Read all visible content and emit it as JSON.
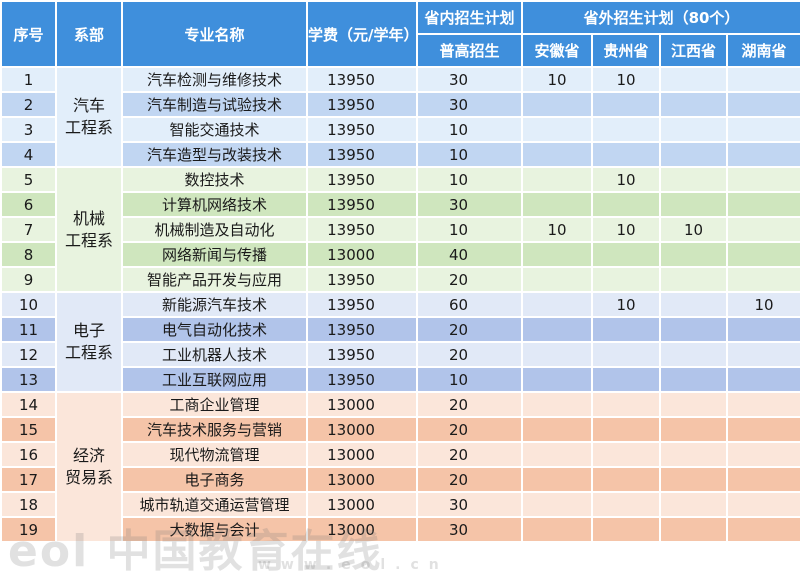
{
  "header": {
    "seq": "序号",
    "dept": "系部",
    "major": "专业名称",
    "tuition": "学费（元/学年）",
    "in_province_plan": "省内招生计划",
    "regular": "普高招生",
    "out_province_plan": "省外招生计划（80个）",
    "provinces": [
      "安徽省",
      "贵州省",
      "江西省",
      "湖南省"
    ]
  },
  "departments": [
    {
      "key": "auto",
      "name_line1": "汽车",
      "name_line2": "工程系",
      "rows": [
        {
          "seq": "1",
          "major": "汽车检测与维修技术",
          "tuition": "13950",
          "regular": "30",
          "p": [
            "10",
            "10",
            "",
            ""
          ]
        },
        {
          "seq": "2",
          "major": "汽车制造与试验技术",
          "tuition": "13950",
          "regular": "30",
          "p": [
            "",
            "",
            "",
            ""
          ]
        },
        {
          "seq": "3",
          "major": "智能交通技术",
          "tuition": "13950",
          "regular": "10",
          "p": [
            "",
            "",
            "",
            ""
          ]
        },
        {
          "seq": "4",
          "major": "汽车造型与改装技术",
          "tuition": "13950",
          "regular": "10",
          "p": [
            "",
            "",
            "",
            ""
          ]
        }
      ]
    },
    {
      "key": "mech",
      "name_line1": "机械",
      "name_line2": "工程系",
      "rows": [
        {
          "seq": "5",
          "major": "数控技术",
          "tuition": "13950",
          "regular": "10",
          "p": [
            "",
            "10",
            "",
            ""
          ]
        },
        {
          "seq": "6",
          "major": "计算机网络技术",
          "tuition": "13950",
          "regular": "30",
          "p": [
            "",
            "",
            "",
            ""
          ]
        },
        {
          "seq": "7",
          "major": "机械制造及自动化",
          "tuition": "13950",
          "regular": "10",
          "p": [
            "10",
            "10",
            "10",
            ""
          ]
        },
        {
          "seq": "8",
          "major": "网络新闻与传播",
          "tuition": "13000",
          "regular": "40",
          "p": [
            "",
            "",
            "",
            ""
          ]
        },
        {
          "seq": "9",
          "major": "智能产品开发与应用",
          "tuition": "13950",
          "regular": "20",
          "p": [
            "",
            "",
            "",
            ""
          ]
        }
      ]
    },
    {
      "key": "elec",
      "name_line1": "电子",
      "name_line2": "工程系",
      "rows": [
        {
          "seq": "10",
          "major": "新能源汽车技术",
          "tuition": "13950",
          "regular": "60",
          "p": [
            "",
            "10",
            "",
            "10"
          ]
        },
        {
          "seq": "11",
          "major": "电气自动化技术",
          "tuition": "13950",
          "regular": "20",
          "p": [
            "",
            "",
            "",
            ""
          ]
        },
        {
          "seq": "12",
          "major": "工业机器人技术",
          "tuition": "13950",
          "regular": "20",
          "p": [
            "",
            "",
            "",
            ""
          ]
        },
        {
          "seq": "13",
          "major": "工业互联网应用",
          "tuition": "13950",
          "regular": "10",
          "p": [
            "",
            "",
            "",
            ""
          ]
        }
      ]
    },
    {
      "key": "econ",
      "name_line1": "经济",
      "name_line2": "贸易系",
      "rows": [
        {
          "seq": "14",
          "major": "工商企业管理",
          "tuition": "13000",
          "regular": "20",
          "p": [
            "",
            "",
            "",
            ""
          ]
        },
        {
          "seq": "15",
          "major": "汽车技术服务与营销",
          "tuition": "13000",
          "regular": "20",
          "p": [
            "",
            "",
            "",
            ""
          ]
        },
        {
          "seq": "16",
          "major": "现代物流管理",
          "tuition": "13000",
          "regular": "20",
          "p": [
            "",
            "",
            "",
            ""
          ]
        },
        {
          "seq": "17",
          "major": "电子商务",
          "tuition": "13000",
          "regular": "20",
          "p": [
            "",
            "",
            "",
            ""
          ]
        },
        {
          "seq": "18",
          "major": "城市轨道交通运营管理",
          "tuition": "13000",
          "regular": "30",
          "p": [
            "",
            "",
            "",
            ""
          ]
        },
        {
          "seq": "19",
          "major": "大数据与会计",
          "tuition": "13000",
          "regular": "30",
          "p": [
            "",
            "",
            "",
            ""
          ]
        }
      ]
    }
  ],
  "watermark": {
    "main": "eol 中国教育在线",
    "sub": "www.eol.cn"
  }
}
